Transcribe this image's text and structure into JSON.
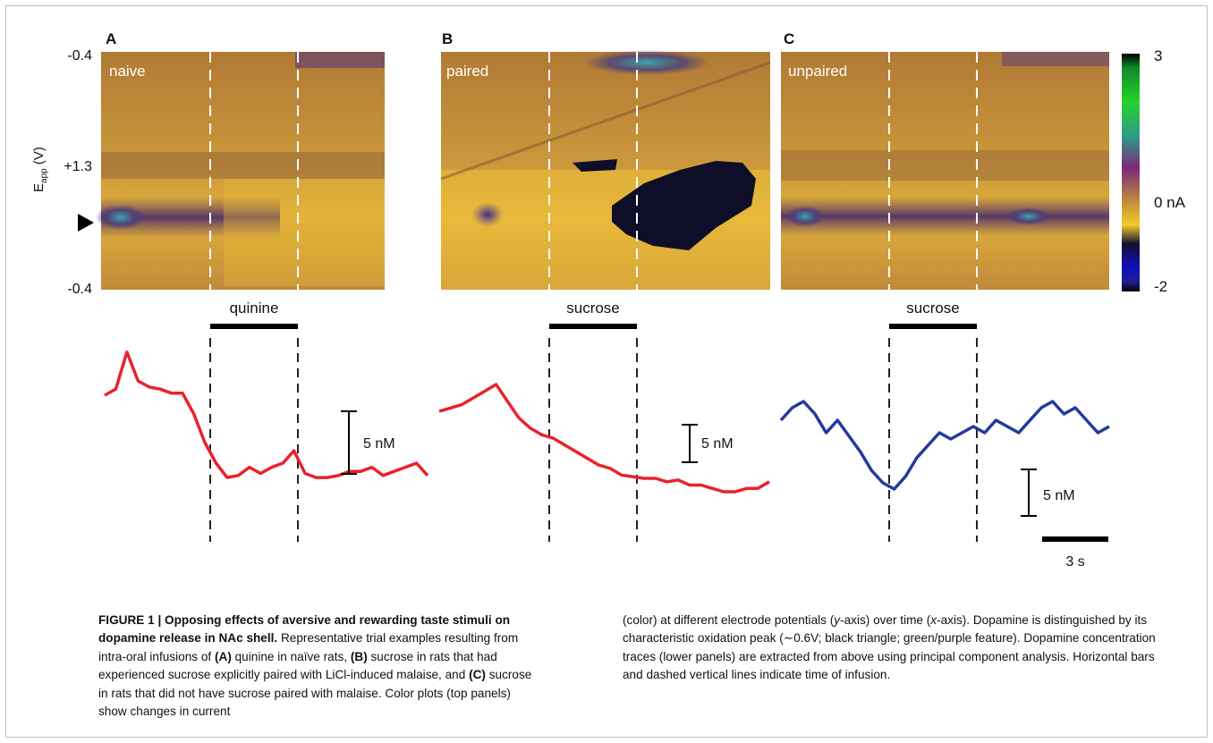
{
  "figure": {
    "panels": [
      {
        "letter": "A",
        "condition": "naive",
        "infusion": "quinine"
      },
      {
        "letter": "B",
        "condition": "paired",
        "infusion": "sucrose"
      },
      {
        "letter": "C",
        "condition": "unpaired",
        "infusion": "sucrose"
      }
    ],
    "y_axis": {
      "label_main": "E",
      "label_sub": "app",
      "label_unit": " (V)",
      "top_tick": "-0.4",
      "mid_tick": "+1.3",
      "bottom_tick": "-0.4"
    },
    "colorbar": {
      "max_label": "3",
      "zero_label": "0 nA",
      "min_label": "-2"
    },
    "scale_bars": {
      "conc_label": "5 nM",
      "time_label": "3 s"
    },
    "colors": {
      "trace_red": "#e8232b",
      "trace_blue": "#233a9c",
      "plot_gold": "#d8a533"
    }
  },
  "caption": {
    "title": "FIGURE 1 | Opposing effects of aversive and rewarding taste stimuli on dopamine release in NAc shell.",
    "seg1": " Representative trial examples resulting from intra-oral infusions of ",
    "a_ref": "(A)",
    "seg2": " quinine in naïve rats, ",
    "b_ref": "(B)",
    "seg3": " sucrose in rats that had experienced sucrose explicitly paired with LiCl-induced malaise, and ",
    "c_ref": "(C)",
    "seg4": " sucrose in rats that did not have sucrose paired with malaise. Color plots (top panels) show changes in current",
    "right_p1": "(color) at different electrode potentials (",
    "right_y": "y",
    "right_p2": "-axis) over time (",
    "right_x": "x",
    "right_p3": "-axis). Dopamine is distinguished by its characteristic oxidation peak (∼0.6V; black triangle; green/purple feature). Dopamine concentration traces (lower panels) are extracted from above using principal component analysis. Horizontal bars and dashed vertical lines indicate time of infusion."
  },
  "chart_data": [
    {
      "type": "line",
      "title": "A",
      "series": [
        {
          "name": "naive",
          "values": [
            36.5,
            38,
            47,
            40,
            38.5,
            38,
            37,
            37,
            32,
            25,
            20,
            16.5,
            17,
            19,
            17.5,
            19,
            20,
            23,
            17.5,
            16.5,
            16.5,
            17,
            18,
            18,
            19,
            17,
            18,
            19,
            20,
            17
          ]
        }
      ],
      "xlabel": "",
      "ylabel": ""
    },
    {
      "type": "line",
      "title": "B",
      "series": [
        {
          "name": "paired",
          "values": [
            40,
            41,
            42,
            44,
            46,
            48,
            43,
            38,
            35,
            33,
            32,
            30,
            28,
            26,
            24,
            23,
            21,
            20.5,
            20,
            20,
            19,
            19.5,
            18,
            18,
            17,
            16,
            16,
            17,
            17,
            19
          ]
        }
      ],
      "xlabel": "",
      "ylabel": ""
    },
    {
      "type": "line",
      "title": "C",
      "series": [
        {
          "name": "unpaired",
          "values": [
            40,
            44,
            46,
            42,
            36,
            40,
            35,
            30,
            24,
            20,
            18,
            22,
            28,
            32,
            36,
            34,
            36,
            38,
            36,
            40,
            38,
            36,
            40,
            44,
            46,
            42,
            44,
            40,
            36,
            38
          ]
        }
      ],
      "xlabel": "",
      "ylabel": ""
    }
  ]
}
